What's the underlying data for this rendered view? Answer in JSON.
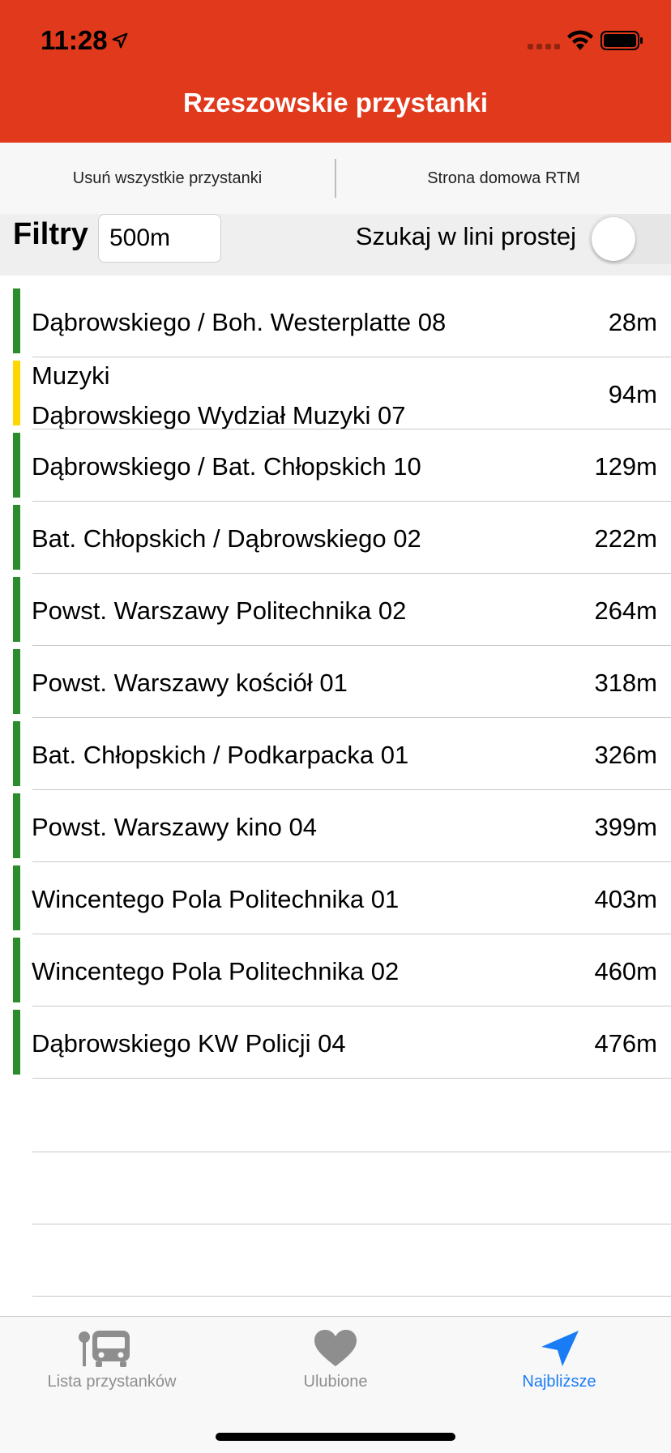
{
  "status": {
    "time": "11:28"
  },
  "header": {
    "title": "Rzeszowskie przystanki"
  },
  "actions": {
    "remove_all": "Usuń wszystkie przystanki",
    "homepage": "Strona domowa RTM"
  },
  "filter": {
    "label": "Filtry",
    "distance_value": "500m",
    "straight_line_label": "Szukaj w lini prostej",
    "straight_line_enabled": false
  },
  "stops": [
    {
      "name": "Dąbrowskiego / Boh. Westerplatte 08",
      "distance": "28m",
      "color": "#2a8c2a"
    },
    {
      "name_line1": "Muzyki",
      "name": "Dąbrowskiego Wydział Muzyki 07",
      "distance": "94m",
      "color": "#ffd600"
    },
    {
      "name": "Dąbrowskiego / Bat. Chłopskich 10",
      "distance": "129m",
      "color": "#2a8c2a"
    },
    {
      "name": "Bat. Chłopskich / Dąbrowskiego 02",
      "distance": "222m",
      "color": "#2a8c2a"
    },
    {
      "name": "Powst. Warszawy Politechnika 02",
      "distance": "264m",
      "color": "#2a8c2a"
    },
    {
      "name": "Powst. Warszawy kościół 01",
      "distance": "318m",
      "color": "#2a8c2a"
    },
    {
      "name": "Bat. Chłopskich / Podkarpacka 01",
      "distance": "326m",
      "color": "#2a8c2a"
    },
    {
      "name": "Powst. Warszawy kino 04",
      "distance": "399m",
      "color": "#2a8c2a"
    },
    {
      "name": "Wincentego Pola Politechnika 01",
      "distance": "403m",
      "color": "#2a8c2a"
    },
    {
      "name": "Wincentego Pola Politechnika 02",
      "distance": "460m",
      "color": "#2a8c2a"
    },
    {
      "name": "Dąbrowskiego KW Policji 04",
      "distance": "476m",
      "color": "#2a8c2a"
    }
  ],
  "tabs": [
    {
      "label": "Lista przystanków",
      "icon": "bus-stop-icon",
      "active": false
    },
    {
      "label": "Ulubione",
      "icon": "heart-icon",
      "active": false
    },
    {
      "label": "Najbliższe",
      "icon": "location-arrow-icon",
      "active": true
    }
  ],
  "colors": {
    "header": "#e0391c",
    "active_tab": "#1a7cf5",
    "inactive_tab": "#8e8e8e",
    "stop_green": "#2a8c2a",
    "stop_yellow": "#ffd600"
  }
}
